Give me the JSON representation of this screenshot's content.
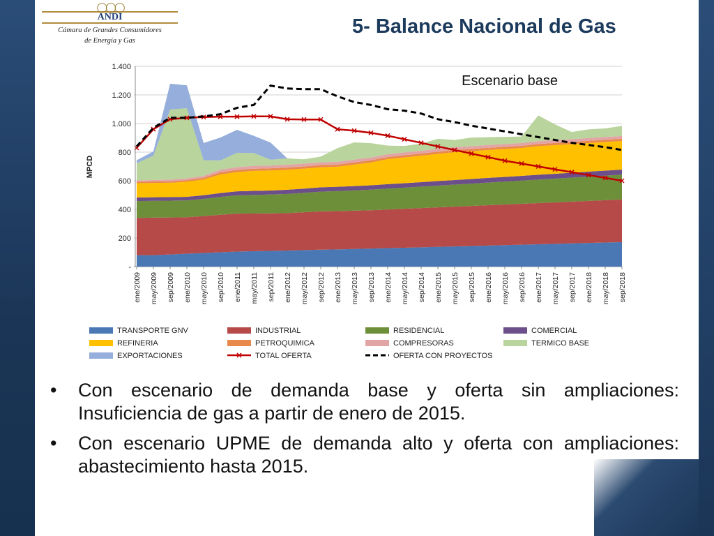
{
  "title": "5- Balance Nacional de Gas",
  "logo": {
    "brand": "ANDI",
    "line1": "Cámara de Grandes Consumidores",
    "line2": "de Energía y Gas"
  },
  "bullet_char": "•",
  "bullets": [
    "Con escenario de demanda base y oferta sin ampliaciones: Insuficiencia de gas a partir de enero de 2015.",
    "Con escenario UPME de demanda alto y oferta con ampliaciones: abastecimiento hasta 2015."
  ],
  "chart_data": {
    "type": "area",
    "annotation": "Escenario base",
    "ylabel": "MPCD",
    "xlabel": "",
    "ylim": [
      0,
      1400
    ],
    "yticks": [
      "-",
      "200",
      "400",
      "600",
      "800",
      "1.000",
      "1.200",
      "1.400"
    ],
    "grid": true,
    "legend_position": "bottom",
    "x_tick_labels": [
      "ene/2009",
      "may/2009",
      "sep/2009",
      "ene/2010",
      "may/2010",
      "sep/2010",
      "ene/2011",
      "may/2011",
      "sep/2011",
      "ene/2012",
      "may/2012",
      "sep/2012",
      "ene/2013",
      "may/2013",
      "sep/2013",
      "ene/2014",
      "may/2014",
      "sep/2014",
      "ene/2015",
      "may/2015",
      "sep/2015",
      "ene/2016",
      "may/2016",
      "sep/2016",
      "ene/2017",
      "may/2017",
      "sep/2017",
      "ene/2018",
      "may/2018",
      "sep/2018"
    ],
    "stacked_series": [
      {
        "name": "TRANSPORTE GNV",
        "color": "#4a78b4",
        "values": [
          80,
          80,
          85,
          90,
          95,
          100,
          105,
          108,
          110,
          112,
          115,
          118,
          120,
          123,
          126,
          129,
          132,
          135,
          138,
          141,
          144,
          147,
          150,
          153,
          156,
          159,
          162,
          165,
          168,
          171
        ]
      },
      {
        "name": "INDUSTRIAL",
        "color": "#b64a48",
        "values": [
          260,
          262,
          258,
          255,
          258,
          262,
          265,
          263,
          262,
          262,
          265,
          268,
          268,
          268,
          268,
          270,
          272,
          274,
          276,
          278,
          280,
          282,
          284,
          286,
          288,
          290,
          292,
          294,
          296,
          298
        ]
      },
      {
        "name": "RESIDENCIAL",
        "color": "#6e8f3a",
        "values": [
          118,
          118,
          118,
          118,
          120,
          125,
          128,
          130,
          132,
          134,
          136,
          138,
          140,
          142,
          144,
          146,
          148,
          150,
          152,
          154,
          156,
          158,
          160,
          162,
          164,
          166,
          168,
          170,
          172,
          174
        ]
      },
      {
        "name": "COMERCIAL",
        "color": "#6b4e8a",
        "values": [
          25,
          25,
          25,
          25,
          26,
          27,
          28,
          28,
          28,
          29,
          29,
          30,
          30,
          30,
          30,
          31,
          31,
          31,
          32,
          32,
          32,
          33,
          33,
          33,
          34,
          34,
          34,
          35,
          35,
          35
        ]
      },
      {
        "name": "REFINERIA",
        "color": "#ffc000",
        "values": [
          100,
          100,
          100,
          105,
          110,
          130,
          135,
          140,
          140,
          140,
          140,
          140,
          140,
          150,
          160,
          175,
          180,
          185,
          190,
          195,
          195,
          195,
          195,
          195,
          200,
          200,
          200,
          200,
          200,
          200
        ]
      },
      {
        "name": "PETROQUIMICA",
        "color": "#e9894c",
        "values": [
          10,
          10,
          10,
          12,
          12,
          15,
          15,
          15,
          15,
          15,
          15,
          15,
          15,
          15,
          15,
          15,
          15,
          15,
          15,
          15,
          15,
          15,
          15,
          15,
          15,
          15,
          15,
          15,
          15,
          15
        ]
      },
      {
        "name": "COMPRESORAS",
        "color": "#e2a5a5",
        "values": [
          10,
          10,
          12,
          12,
          13,
          18,
          20,
          20,
          20,
          20,
          20,
          20,
          20,
          20,
          20,
          20,
          20,
          20,
          20,
          20,
          20,
          20,
          20,
          20,
          20,
          20,
          20,
          20,
          20,
          20
        ]
      },
      {
        "name": "TERMICO BASE",
        "color": "#b9d49c",
        "values": [
          120,
          170,
          490,
          490,
          110,
          65,
          100,
          90,
          40,
          45,
          30,
          40,
          95,
          120,
          100,
          60,
          45,
          50,
          70,
          50,
          60,
          55,
          50,
          45,
          180,
          110,
          50,
          60,
          60,
          70
        ]
      },
      {
        "name": "EXPORTACIONES",
        "color": "#95aedb",
        "values": [
          20,
          30,
          180,
          160,
          120,
          160,
          160,
          120,
          120,
          0,
          0,
          0,
          0,
          0,
          0,
          0,
          0,
          0,
          0,
          0,
          0,
          0,
          0,
          0,
          0,
          0,
          0,
          0,
          0,
          0
        ]
      }
    ],
    "line_series": [
      {
        "name": "TOTAL OFERTA",
        "color": "#c00000",
        "marker": "x",
        "values": [
          830,
          960,
          1030,
          1040,
          1045,
          1048,
          1048,
          1050,
          1050,
          1030,
          1028,
          1028,
          960,
          950,
          935,
          915,
          890,
          865,
          840,
          815,
          790,
          765,
          740,
          720,
          700,
          680,
          660,
          640,
          620,
          600
        ]
      },
      {
        "name": "OFERTA CON PROYECTOS",
        "color": "#000000",
        "dashed": true,
        "values": [
          840,
          970,
          1040,
          1040,
          1050,
          1065,
          1110,
          1130,
          1265,
          1245,
          1240,
          1240,
          1190,
          1150,
          1130,
          1100,
          1090,
          1070,
          1030,
          1010,
          985,
          965,
          945,
          925,
          905,
          885,
          865,
          850,
          835,
          815
        ]
      }
    ],
    "legend": [
      "TRANSPORTE GNV",
      "INDUSTRIAL",
      "RESIDENCIAL",
      "COMERCIAL",
      "REFINERIA",
      "PETROQUIMICA",
      "COMPRESORAS",
      "TERMICO BASE",
      "EXPORTACIONES",
      "TOTAL OFERTA",
      "OFERTA CON PROYECTOS"
    ]
  }
}
